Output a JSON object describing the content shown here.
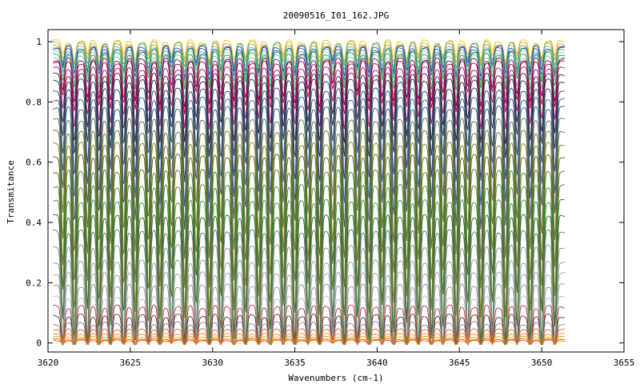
{
  "chart_data": {
    "type": "line",
    "title": "20090516_I01_162.JPG",
    "xlabel": "Wavenumbers (cm-1)",
    "ylabel": "Transmitance",
    "xlim": [
      3620,
      3655
    ],
    "ylim": [
      -0.03,
      1.04
    ],
    "x_ticks": [
      3620,
      3625,
      3630,
      3635,
      3640,
      3645,
      3650,
      3655
    ],
    "y_ticks": [
      0,
      0.2,
      0.4,
      0.6,
      0.8,
      1
    ],
    "x_tick_labels": [
      "3620",
      "3625",
      "3630",
      "3635",
      "3640",
      "3645",
      "3650",
      "3655"
    ],
    "y_tick_labels": [
      "0",
      "0.2",
      "0.4",
      "0.6",
      "0.8",
      "1"
    ],
    "data_x_range": [
      3620.3,
      3651.4
    ],
    "grid": false,
    "legend": "none",
    "absorption_lines_cm1": [
      3620.9,
      3621.6,
      3622.4,
      3623.1,
      3623.8,
      3624.6,
      3625.3,
      3626.1,
      3626.8,
      3627.5,
      3628.3,
      3629.0,
      3629.8,
      3630.5,
      3631.3,
      3632.0,
      3632.8,
      3633.5,
      3634.3,
      3635.0,
      3635.8,
      3636.5,
      3637.3,
      3638.0,
      3638.8,
      3639.5,
      3640.3,
      3641.0,
      3641.8,
      3642.5,
      3643.3,
      3644.0,
      3644.8,
      3645.5,
      3646.3,
      3647.0,
      3647.8,
      3648.5,
      3649.3,
      3650.0,
      3650.8
    ],
    "series_baseline_transmittance": [
      1.0,
      0.995,
      0.99,
      0.985,
      0.98,
      0.975,
      0.97,
      0.965,
      0.96,
      0.95,
      0.94,
      0.93,
      0.91,
      0.89,
      0.87,
      0.84,
      0.81,
      0.78,
      0.74,
      0.7,
      0.66,
      0.62,
      0.57,
      0.52,
      0.47,
      0.42,
      0.37,
      0.32,
      0.27,
      0.23,
      0.19,
      0.15,
      0.12,
      0.09,
      0.065,
      0.045,
      0.03,
      0.02,
      0.012,
      0.008
    ],
    "series_colors": [
      "#f0c000",
      "#e8a030",
      "#60b060",
      "#80c080",
      "#2040c0",
      "#3050b0",
      "#60a0c0",
      "#a0d080",
      "#20a040",
      "#70c0a0",
      "#800060",
      "#b00040",
      "#a01070",
      "#402040",
      "#203040",
      "#304060",
      "#306080",
      "#405070",
      "#607040",
      "#607030",
      "#808020",
      "#506020",
      "#408020",
      "#508040",
      "#409040",
      "#306020",
      "#607080",
      "#909070",
      "#80a0a0",
      "#a0a0a0",
      "#909090",
      "#b0c0d0",
      "#c03030",
      "#404040",
      "#8080a0",
      "#e06020",
      "#f08030",
      "#e0a000",
      "#f04020",
      "#e07010"
    ]
  }
}
